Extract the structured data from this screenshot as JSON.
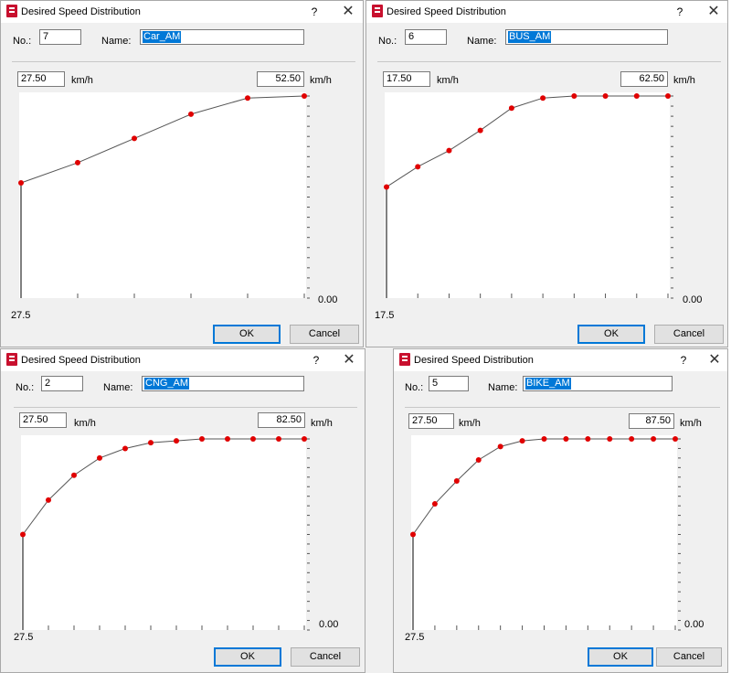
{
  "dialogs": [
    {
      "title": "Desired Speed Distribution",
      "help": "?",
      "close": "✕",
      "no_label": "No.:",
      "no_value": "7",
      "name_label": "Name:",
      "name_value": "Car_AM",
      "min_speed": "27.50",
      "max_speed": "52.50",
      "unit": "km/h",
      "x_tick_label": "27.5",
      "y_tick_label": "0.00",
      "ok": "OK",
      "cancel": "Cancel",
      "chart_data": {
        "type": "line",
        "x": [
          27.5,
          32.5,
          37.5,
          42.5,
          47.5,
          52.5
        ],
        "y": [
          0.57,
          0.67,
          0.79,
          0.91,
          0.99,
          1.0
        ],
        "xlim": [
          27.5,
          52.5
        ],
        "ylim": [
          0,
          1
        ],
        "point_color": "#e00000",
        "line_color": "#555555"
      }
    },
    {
      "title": "Desired Speed Distribution",
      "help": "?",
      "close": "✕",
      "no_label": "No.:",
      "no_value": "6",
      "name_label": "Name:",
      "name_value": "BUS_AM",
      "min_speed": "17.50",
      "max_speed": "62.50",
      "unit": "km/h",
      "x_tick_label": "17.5",
      "y_tick_label": "0.00",
      "ok": "OK",
      "cancel": "Cancel",
      "chart_data": {
        "type": "line",
        "x": [
          17.5,
          22.5,
          27.5,
          32.5,
          37.5,
          42.5,
          47.5,
          52.5,
          57.5,
          62.5
        ],
        "y": [
          0.55,
          0.65,
          0.73,
          0.83,
          0.94,
          0.99,
          1.0,
          1.0,
          1.0,
          1.0
        ],
        "xlim": [
          17.5,
          62.5
        ],
        "ylim": [
          0,
          1
        ],
        "point_color": "#e00000",
        "line_color": "#555555"
      }
    },
    {
      "title": "Desired Speed Distribution",
      "help": "?",
      "close": "✕",
      "no_label": "No.:",
      "no_value": "2",
      "name_label": "Name:",
      "name_value": "CNG_AM",
      "min_speed": "27.50",
      "max_speed": "82.50",
      "unit": "km/h",
      "x_tick_label": "27.5",
      "y_tick_label": "0.00",
      "ok": "OK",
      "cancel": "Cancel",
      "chart_data": {
        "type": "line",
        "x": [
          27.5,
          32.5,
          37.5,
          42.5,
          47.5,
          52.5,
          57.5,
          62.5,
          67.5,
          72.5,
          77.5,
          82.5
        ],
        "y": [
          0.5,
          0.68,
          0.81,
          0.9,
          0.95,
          0.98,
          0.99,
          1.0,
          1.0,
          1.0,
          1.0,
          1.0
        ],
        "xlim": [
          27.5,
          82.5
        ],
        "ylim": [
          0,
          1
        ],
        "point_color": "#e00000",
        "line_color": "#555555"
      }
    },
    {
      "title": "Desired Speed Distribution",
      "help": "?",
      "close": "✕",
      "no_label": "No.:",
      "no_value": "5",
      "name_label": "Name:",
      "name_value": "BIKE_AM",
      "min_speed": "27.50",
      "max_speed": "87.50",
      "unit": "km/h",
      "x_tick_label": "27.5",
      "y_tick_label": "0.00",
      "ok": "OK",
      "cancel": "Cancel",
      "chart_data": {
        "type": "line",
        "x": [
          27.5,
          32.5,
          37.5,
          42.5,
          47.5,
          52.5,
          57.5,
          62.5,
          67.5,
          72.5,
          77.5,
          82.5,
          87.5
        ],
        "y": [
          0.5,
          0.66,
          0.78,
          0.89,
          0.96,
          0.99,
          1.0,
          1.0,
          1.0,
          1.0,
          1.0,
          1.0,
          1.0
        ],
        "xlim": [
          27.5,
          87.5
        ],
        "ylim": [
          0,
          1
        ],
        "point_color": "#e00000",
        "line_color": "#555555"
      }
    }
  ]
}
